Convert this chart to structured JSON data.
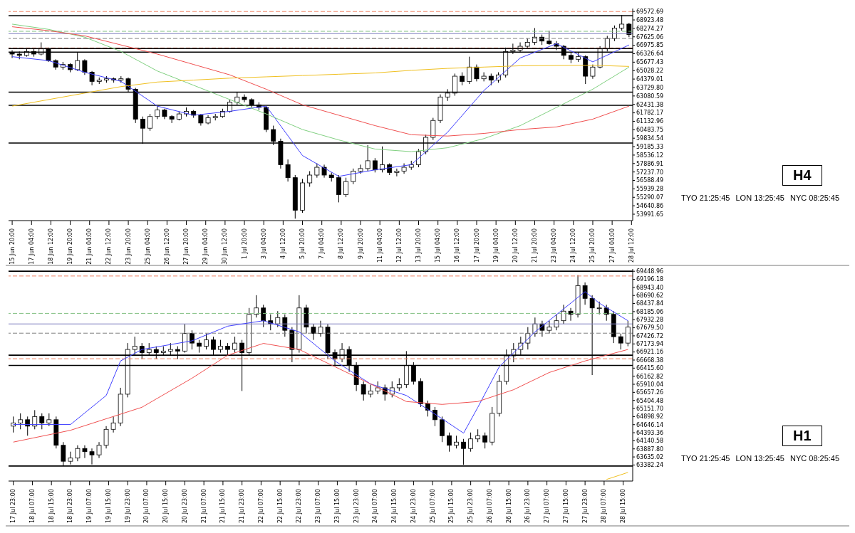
{
  "chart_data": [
    {
      "type": "candlestick",
      "color": "#000000",
      "x": [
        "--06-15T20:00",
        "--06-16T08:00",
        "--06-16T20:00",
        "--06-17T08:00",
        "--06-17T20:00",
        "--06-18T08:00",
        "--06-18T20:00",
        "--06-19T08:00",
        "--06-19T20:00",
        "--06-20T08:00",
        "--06-20T20:00",
        "--06-21T08:00",
        "--06-21T20:00",
        "--06-22T08:00",
        "--06-22T20:00",
        "--06-23T08:00",
        "--06-23T20:00",
        "--06-24T08:00",
        "--06-24T20:00",
        "--06-25T08:00",
        "--06-25T20:00",
        "--06-26T08:00",
        "--06-26T20:00",
        "--06-27T08:00",
        "--06-27T20:00",
        "--06-28T08:00",
        "--06-28T20:00",
        "--06-29T08:00",
        "--06-29T20:00",
        "--06-30T08:00",
        "--06-30T20:00",
        "--07-01T08:00",
        "--07-01T20:00",
        "--07-02T08:00",
        "--07-02T20:00",
        "--07-03T08:00",
        "--07-03T20:00",
        "--07-04T08:00",
        "--07-04T20:00",
        "--07-05T08:00",
        "--07-05T20:00",
        "--07-06T08:00",
        "--07-06T20:00",
        "--07-07T08:00",
        "--07-07T20:00",
        "--07-08T08:00",
        "--07-08T20:00",
        "--07-09T08:00",
        "--07-09T20:00",
        "--07-10T08:00",
        "--07-10T20:00",
        "--07-11T08:00",
        "--07-11T20:00",
        "--07-12T08:00",
        "--07-12T20:00",
        "--07-13T08:00",
        "--07-13T20:00",
        "--07-14T08:00",
        "--07-14T20:00",
        "--07-15T08:00",
        "--07-15T20:00",
        "--07-16T08:00",
        "--07-16T20:00",
        "--07-17T08:00",
        "--07-17T20:00",
        "--07-18T08:00",
        "--07-18T20:00",
        "--07-19T08:00",
        "--07-19T20:00",
        "--07-20T08:00",
        "--07-20T20:00",
        "--07-21T08:00",
        "--07-21T20:00",
        "--07-22T08:00",
        "--07-22T20:00",
        "--07-23T08:00",
        "--07-23T20:00",
        "--07-24T08:00",
        "--07-24T20:00",
        "--07-25T08:00",
        "--07-25T20:00",
        "--07-26T08:00",
        "--07-26T20:00",
        "--07-27T08:00",
        "--07-27T20:00",
        "--07-28T08:00"
      ],
      "ohlc": [
        [
          66400,
          66600,
          66000,
          66300
        ],
        [
          66300,
          66500,
          65900,
          66200
        ],
        [
          66200,
          66700,
          66100,
          66500
        ],
        [
          66500,
          66700,
          66100,
          66300
        ],
        [
          66300,
          67200,
          66200,
          66700
        ],
        [
          66700,
          66800,
          65700,
          65800
        ],
        [
          65800,
          65900,
          65100,
          65300
        ],
        [
          65300,
          65700,
          65100,
          65500
        ],
        [
          65500,
          65600,
          64900,
          65100
        ],
        [
          65100,
          66400,
          65000,
          65800
        ],
        [
          65800,
          65900,
          64700,
          64900
        ],
        [
          64900,
          65000,
          63900,
          64200
        ],
        [
          64200,
          64500,
          64000,
          64300
        ],
        [
          64300,
          64600,
          64100,
          64400
        ],
        [
          64400,
          64500,
          64100,
          64300
        ],
        [
          64300,
          64600,
          64100,
          64400
        ],
        [
          64400,
          64500,
          63400,
          63600
        ],
        [
          63600,
          63700,
          61000,
          61300
        ],
        [
          61300,
          61500,
          59400,
          60600
        ],
        [
          60600,
          61700,
          60400,
          61500
        ],
        [
          61500,
          62300,
          61300,
          62000
        ],
        [
          62000,
          62100,
          61300,
          61500
        ],
        [
          61500,
          61600,
          61000,
          61300
        ],
        [
          61300,
          61900,
          61200,
          61700
        ],
        [
          61700,
          62200,
          61500,
          61900
        ],
        [
          61900,
          62000,
          61400,
          61600
        ],
        [
          61600,
          61700,
          60800,
          61000
        ],
        [
          61000,
          61600,
          60900,
          61400
        ],
        [
          61400,
          61700,
          61200,
          61500
        ],
        [
          61500,
          62100,
          61400,
          61900
        ],
        [
          61900,
          62800,
          61800,
          62600
        ],
        [
          62600,
          63400,
          62400,
          63000
        ],
        [
          63000,
          63200,
          62600,
          62800
        ],
        [
          62800,
          62900,
          62200,
          62400
        ],
        [
          62400,
          62600,
          62000,
          62200
        ],
        [
          62200,
          62300,
          60300,
          60500
        ],
        [
          60500,
          60800,
          59300,
          59600
        ],
        [
          59600,
          59800,
          57500,
          57800
        ],
        [
          57800,
          58200,
          56500,
          56800
        ],
        [
          56800,
          57000,
          53650,
          54300
        ],
        [
          54300,
          56700,
          54100,
          56400
        ],
        [
          56400,
          57300,
          56100,
          57000
        ],
        [
          57000,
          57900,
          56800,
          57600
        ],
        [
          57600,
          57800,
          56800,
          57000
        ],
        [
          57000,
          57200,
          56500,
          56800
        ],
        [
          56800,
          57000,
          54900,
          55500
        ],
        [
          55500,
          56800,
          55300,
          56500
        ],
        [
          56500,
          57500,
          56300,
          57300
        ],
        [
          57300,
          57800,
          57100,
          57500
        ],
        [
          57500,
          59300,
          57300,
          58100
        ],
        [
          58100,
          58300,
          57200,
          57400
        ],
        [
          57400,
          59200,
          57200,
          57800
        ],
        [
          57800,
          57900,
          57000,
          57200
        ],
        [
          57200,
          57500,
          56900,
          57300
        ],
        [
          57300,
          57900,
          57100,
          57600
        ],
        [
          57600,
          58100,
          57400,
          57800
        ],
        [
          57800,
          59000,
          57600,
          58800
        ],
        [
          58800,
          60100,
          58600,
          59900
        ],
        [
          59900,
          61400,
          59700,
          61200
        ],
        [
          61200,
          63200,
          61000,
          63000
        ],
        [
          63000,
          63600,
          62700,
          63300
        ],
        [
          63300,
          64800,
          63100,
          64600
        ],
        [
          64600,
          64900,
          63900,
          64200
        ],
        [
          64200,
          66100,
          64000,
          65300
        ],
        [
          65300,
          65500,
          64200,
          64400
        ],
        [
          64400,
          64900,
          64200,
          64600
        ],
        [
          64600,
          64800,
          63900,
          64300
        ],
        [
          64300,
          64900,
          64100,
          64700
        ],
        [
          64700,
          66800,
          64500,
          66500
        ],
        [
          66500,
          67100,
          66300,
          66600
        ],
        [
          66600,
          67200,
          66400,
          66900
        ],
        [
          66900,
          67500,
          66700,
          67200
        ],
        [
          67200,
          68300,
          67000,
          67600
        ],
        [
          67600,
          67800,
          67000,
          67300
        ],
        [
          67300,
          68100,
          67000,
          67100
        ],
        [
          67100,
          67300,
          66600,
          66900
        ],
        [
          66900,
          67000,
          65900,
          66200
        ],
        [
          66200,
          66400,
          65600,
          65900
        ],
        [
          65900,
          66400,
          65700,
          66100
        ],
        [
          66100,
          66200,
          64000,
          64600
        ],
        [
          64600,
          65500,
          64400,
          65300
        ],
        [
          65300,
          66900,
          65200,
          66700
        ],
        [
          66700,
          67700,
          66500,
          67500
        ],
        [
          67500,
          68500,
          67300,
          68300
        ],
        [
          68300,
          69300,
          68100,
          68600
        ],
        [
          68600,
          68700,
          67600,
          67800
        ]
      ],
      "series": [
        {
          "type": "line",
          "color": "#4040ff",
          "x": [
            "--06-15T20:00",
            "--06-18T08:00",
            "--06-20T20:00",
            "--06-23T08:00",
            "--06-25T20:00",
            "--06-28T08:00",
            "--06-30T20:00",
            "--07-03T08:00",
            "--07-05T20:00",
            "--07-08T08:00",
            "--07-10T20:00",
            "--07-13T08:00",
            "--07-15T20:00",
            "--07-18T08:00",
            "--07-20T20:00",
            "--07-23T08:00",
            "--07-25T20:00",
            "--07-28T08:00"
          ],
          "values": [
            66100,
            65800,
            64900,
            64200,
            62300,
            61600,
            61900,
            62300,
            58500,
            56900,
            57400,
            57800,
            60300,
            63500,
            66000,
            67100,
            65700,
            67000
          ]
        },
        {
          "type": "line",
          "color": "#80d080",
          "x": [
            "--06-15T20:00",
            "--06-18T08:00",
            "--06-20T20:00",
            "--06-23T08:00",
            "--06-25T20:00",
            "--06-28T08:00",
            "--06-30T20:00",
            "--07-03T08:00",
            "--07-05T20:00",
            "--07-08T08:00",
            "--07-10T20:00",
            "--07-13T08:00",
            "--07-15T20:00",
            "--07-18T08:00",
            "--07-20T20:00",
            "--07-23T08:00",
            "--07-25T20:00",
            "--07-28T08:00"
          ],
          "values": [
            68600,
            68200,
            67600,
            66500,
            65000,
            63900,
            62800,
            61700,
            60500,
            59700,
            59000,
            58800,
            59100,
            59800,
            60800,
            62200,
            63600,
            65300
          ]
        },
        {
          "type": "line",
          "color": "#f05050",
          "x": [
            "--06-15T20:00",
            "--06-18T08:00",
            "--06-20T20:00",
            "--06-23T08:00",
            "--06-25T20:00",
            "--06-28T08:00",
            "--06-30T20:00",
            "--07-03T08:00",
            "--07-05T20:00",
            "--07-08T08:00",
            "--07-10T20:00",
            "--07-13T08:00",
            "--07-15T20:00",
            "--07-18T08:00",
            "--07-20T20:00",
            "--07-23T08:00",
            "--07-25T20:00",
            "--07-28T08:00"
          ],
          "values": [
            68400,
            68100,
            67700,
            67000,
            66300,
            65500,
            64700,
            63600,
            62400,
            61600,
            60800,
            60100,
            60000,
            60200,
            60500,
            60700,
            61300,
            62300
          ]
        },
        {
          "type": "line",
          "color": "#f0c020",
          "x": [
            "--06-15T20:00",
            "--06-18T08:00",
            "--06-20T20:00",
            "--06-23T08:00",
            "--06-25T20:00",
            "--06-28T08:00",
            "--06-30T20:00",
            "--07-03T08:00",
            "--07-05T20:00",
            "--07-08T08:00",
            "--07-10T20:00",
            "--07-13T08:00",
            "--07-15T20:00",
            "--07-18T08:00",
            "--07-20T20:00",
            "--07-23T08:00",
            "--07-25T20:00",
            "--07-28T08:00"
          ],
          "values": [
            62300,
            62800,
            63300,
            63800,
            64150,
            64300,
            64450,
            64550,
            64650,
            64750,
            64850,
            65050,
            65200,
            65300,
            65400,
            65420,
            65440,
            65350
          ]
        }
      ],
      "xlim": [
        "--06-15T14:00",
        "--07-28T14:00"
      ],
      "xticks": [
        {
          "value": "--06-15T20:00",
          "label": "15 Jun 20:00"
        },
        {
          "value": "--06-17T04:00",
          "label": "17 Jun 04:00"
        },
        {
          "value": "--06-18T12:00",
          "label": "18 Jun 12:00"
        },
        {
          "value": "--06-19T20:00",
          "label": "19 Jun 20:00"
        },
        {
          "value": "--06-21T04:00",
          "label": "21 Jun 04:00"
        },
        {
          "value": "--06-22T12:00",
          "label": "22 Jun 12:00"
        },
        {
          "value": "--06-23T20:00",
          "label": "23 Jun 20:00"
        },
        {
          "value": "--06-25T04:00",
          "label": "25 Jun 04:00"
        },
        {
          "value": "--06-26T12:00",
          "label": "26 Jun 12:00"
        },
        {
          "value": "--06-27T20:00",
          "label": "27 Jun 20:00"
        },
        {
          "value": "--06-29T04:00",
          "label": "29 Jun 04:00"
        },
        {
          "value": "--06-30T12:00",
          "label": "30 Jun 12:00"
        },
        {
          "value": "--07-01T20:00",
          "label": "1 Jul 20:00"
        },
        {
          "value": "--07-03T04:00",
          "label": "3 Jul 04:00"
        },
        {
          "value": "--07-04T12:00",
          "label": "4 Jul 12:00"
        },
        {
          "value": "--07-05T20:00",
          "label": "5 Jul 20:00"
        },
        {
          "value": "--07-07T04:00",
          "label": "7 Jul 04:00"
        },
        {
          "value": "--07-08T12:00",
          "label": "8 Jul 12:00"
        },
        {
          "value": "--07-09T20:00",
          "label": "9 Jul 20:00"
        },
        {
          "value": "--07-11T04:00",
          "label": "11 Jul 04:00"
        },
        {
          "value": "--07-12T12:00",
          "label": "12 Jul 12:00"
        },
        {
          "value": "--07-13T20:00",
          "label": "13 Jul 20:00"
        },
        {
          "value": "--07-15T04:00",
          "label": "15 Jul 04:00"
        },
        {
          "value": "--07-16T12:00",
          "label": "16 Jul 12:00"
        },
        {
          "value": "--07-17T20:00",
          "label": "17 Jul 20:00"
        },
        {
          "value": "--07-19T04:00",
          "label": "19 Jul 04:00"
        },
        {
          "value": "--07-20T12:00",
          "label": "20 Jul 12:00"
        },
        {
          "value": "--07-21T20:00",
          "label": "21 Jul 20:00"
        },
        {
          "value": "--07-23T04:00",
          "label": "23 Jul 04:00"
        },
        {
          "value": "--07-24T12:00",
          "label": "24 Jul 12:00"
        },
        {
          "value": "--07-25T20:00",
          "label": "25 Jul 20:00"
        },
        {
          "value": "--07-27T04:00",
          "label": "27 Jul 04:00"
        },
        {
          "value": "--07-28T12:00",
          "label": "28 Jul 12:00"
        }
      ],
      "ylim": [
        53500,
        69800
      ],
      "yticks": [
        53991.65,
        54640.86,
        55290.07,
        55939.28,
        56588.49,
        {
          "value": 57237.7,
          "label": "57237.70"
        },
        57886.91,
        58536.12,
        59185.33,
        59834.54,
        60483.75,
        61132.96,
        61782.17,
        62431.38,
        63080.59,
        {
          "value": 63729.8,
          "label": "63729.80"
        },
        64379.01,
        65028.22,
        65677.43,
        66326.64,
        66975.85,
        67625.06,
        68274.27,
        68923.48,
        69572.69
      ],
      "ref_lines": [
        {
          "axis": "y",
          "value": 69570,
          "color": "#f08060",
          "line_style": "dashed"
        },
        {
          "axis": "y",
          "value": 69250,
          "color": "#000000",
          "line_style": "solid"
        },
        {
          "axis": "y",
          "value": 68050,
          "color": "#80c080",
          "line_style": "dashed"
        },
        {
          "axis": "y",
          "value": 67870,
          "color": "#8080c0",
          "line_style": "solid"
        },
        {
          "axis": "y",
          "value": 67500,
          "color": "#808080",
          "line_style": "dashed"
        },
        {
          "axis": "y",
          "value": 66770,
          "color": "#f08060",
          "line_style": "dashed"
        },
        {
          "axis": "y",
          "value": 66720,
          "color": "#000000",
          "line_style": "solid"
        },
        {
          "axis": "y",
          "value": 66450,
          "color": "#000000",
          "line_style": "solid"
        },
        {
          "axis": "y",
          "value": 63370,
          "color": "#000000",
          "line_style": "solid"
        },
        {
          "axis": "y",
          "value": 62360,
          "color": "#000000",
          "line_style": "solid"
        },
        {
          "axis": "y",
          "value": 59460,
          "color": "#000000",
          "line_style": "solid"
        }
      ],
      "annotations": [
        "H4",
        "TYO 21:25:45",
        "LON 13:25:45",
        "NYC 08:25:45"
      ]
    },
    {
      "type": "candlestick",
      "color": "#000000",
      "x": [
        "--07-17T23:00",
        "--07-18T02:00",
        "--07-18T05:00",
        "--07-18T08:00",
        "--07-18T11:00",
        "--07-18T14:00",
        "--07-18T17:00",
        "--07-18T20:00",
        "--07-18T23:00",
        "--07-19T02:00",
        "--07-19T05:00",
        "--07-19T08:00",
        "--07-19T11:00",
        "--07-19T14:00",
        "--07-19T17:00",
        "--07-19T20:00",
        "--07-19T23:00",
        "--07-20T02:00",
        "--07-20T05:00",
        "--07-20T08:00",
        "--07-20T11:00",
        "--07-20T14:00",
        "--07-20T17:00",
        "--07-20T20:00",
        "--07-20T23:00",
        "--07-21T02:00",
        "--07-21T05:00",
        "--07-21T08:00",
        "--07-21T11:00",
        "--07-21T14:00",
        "--07-21T17:00",
        "--07-21T20:00",
        "--07-21T23:00",
        "--07-22T02:00",
        "--07-22T05:00",
        "--07-22T08:00",
        "--07-22T11:00",
        "--07-22T14:00",
        "--07-22T17:00",
        "--07-22T20:00",
        "--07-22T23:00",
        "--07-23T02:00",
        "--07-23T05:00",
        "--07-23T08:00",
        "--07-23T11:00",
        "--07-23T14:00",
        "--07-23T17:00",
        "--07-23T20:00",
        "--07-23T23:00",
        "--07-24T02:00",
        "--07-24T05:00",
        "--07-24T08:00",
        "--07-24T11:00",
        "--07-24T14:00",
        "--07-24T17:00",
        "--07-24T20:00",
        "--07-24T23:00",
        "--07-25T02:00",
        "--07-25T05:00",
        "--07-25T08:00",
        "--07-25T11:00",
        "--07-25T14:00",
        "--07-25T17:00",
        "--07-25T20:00",
        "--07-25T23:00",
        "--07-26T02:00",
        "--07-26T05:00",
        "--07-26T08:00",
        "--07-26T11:00",
        "--07-26T14:00",
        "--07-26T17:00",
        "--07-26T20:00",
        "--07-26T23:00",
        "--07-27T02:00",
        "--07-27T05:00",
        "--07-27T08:00",
        "--07-27T11:00",
        "--07-27T14:00",
        "--07-27T17:00",
        "--07-27T20:00",
        "--07-27T23:00",
        "--07-28T02:00",
        "--07-28T05:00",
        "--07-28T08:00",
        "--07-28T11:00",
        "--07-28T14:00",
        "--07-28T17:00"
      ],
      "ohlc": [
        [
          64600,
          64900,
          64400,
          64700
        ],
        [
          64700,
          65000,
          64500,
          64800
        ],
        [
          64800,
          64900,
          64300,
          64600
        ],
        [
          64600,
          65100,
          64500,
          64900
        ],
        [
          64900,
          65000,
          64500,
          64700
        ],
        [
          64700,
          65000,
          64600,
          64800
        ],
        [
          64800,
          64900,
          63900,
          64000
        ],
        [
          64000,
          64100,
          63350,
          63500
        ],
        [
          63500,
          63800,
          63400,
          63600
        ],
        [
          63600,
          64000,
          63500,
          63900
        ],
        [
          63900,
          64000,
          63600,
          63800
        ],
        [
          63800,
          63900,
          63400,
          63700
        ],
        [
          63700,
          64100,
          63600,
          64000
        ],
        [
          64000,
          64600,
          63900,
          64500
        ],
        [
          64500,
          64900,
          64400,
          64700
        ],
        [
          64700,
          65800,
          64600,
          65600
        ],
        [
          65600,
          67200,
          65500,
          67000
        ],
        [
          67000,
          67400,
          66800,
          67100
        ],
        [
          67100,
          67200,
          66700,
          66900
        ],
        [
          66900,
          67200,
          66800,
          67000
        ],
        [
          67000,
          67100,
          66700,
          66900
        ],
        [
          66900,
          67100,
          66800,
          66950
        ],
        [
          66950,
          67200,
          66800,
          67000
        ],
        [
          67000,
          67100,
          66700,
          66950
        ],
        [
          66950,
          67800,
          66900,
          67500
        ],
        [
          67500,
          67600,
          67000,
          67200
        ],
        [
          67200,
          67300,
          66900,
          67100
        ],
        [
          67100,
          67500,
          67000,
          67300
        ],
        [
          67300,
          67400,
          66800,
          67000
        ],
        [
          67000,
          67300,
          66900,
          67100
        ],
        [
          67100,
          67200,
          66800,
          67000
        ],
        [
          67000,
          67400,
          66900,
          67200
        ],
        [
          67200,
          67300,
          65700,
          66900
        ],
        [
          66900,
          68300,
          66800,
          68100
        ],
        [
          68100,
          68700,
          68000,
          68300
        ],
        [
          68300,
          68400,
          67700,
          67900
        ],
        [
          67900,
          68100,
          67600,
          67800
        ],
        [
          67800,
          68200,
          67700,
          68000
        ],
        [
          68000,
          68100,
          67400,
          67600
        ],
        [
          67600,
          67700,
          66600,
          67000
        ],
        [
          67000,
          68700,
          66900,
          68300
        ],
        [
          68300,
          68400,
          67500,
          67700
        ],
        [
          67700,
          67800,
          67300,
          67500
        ],
        [
          67500,
          67900,
          67400,
          67700
        ],
        [
          67700,
          67800,
          66700,
          66900
        ],
        [
          66900,
          67000,
          66500,
          66700
        ],
        [
          66700,
          67200,
          66600,
          67000
        ],
        [
          67000,
          67100,
          66300,
          66500
        ],
        [
          66500,
          66600,
          65700,
          65900
        ],
        [
          65900,
          66000,
          65400,
          65600
        ],
        [
          65600,
          65900,
          65500,
          65700
        ],
        [
          65700,
          66000,
          65600,
          65800
        ],
        [
          65800,
          65900,
          65400,
          65600
        ],
        [
          65600,
          66000,
          65500,
          65800
        ],
        [
          65800,
          66100,
          65700,
          65900
        ],
        [
          65900,
          66950,
          65800,
          66500
        ],
        [
          66500,
          66600,
          65900,
          66000
        ],
        [
          66000,
          66100,
          65200,
          65300
        ],
        [
          65300,
          65400,
          64900,
          65100
        ],
        [
          65100,
          65200,
          64600,
          64800
        ],
        [
          64800,
          64900,
          64100,
          64300
        ],
        [
          64300,
          64400,
          63800,
          64000
        ],
        [
          64000,
          64300,
          63900,
          64100
        ],
        [
          64100,
          64200,
          63390,
          63900
        ],
        [
          63900,
          64400,
          63800,
          64200
        ],
        [
          64200,
          64500,
          64100,
          64300
        ],
        [
          64300,
          64400,
          63900,
          64100
        ],
        [
          64100,
          65200,
          64000,
          65000
        ],
        [
          65000,
          66200,
          64900,
          66000
        ],
        [
          66000,
          67000,
          65900,
          66800
        ],
        [
          66800,
          67200,
          66600,
          67000
        ],
        [
          67000,
          67400,
          66800,
          67200
        ],
        [
          67200,
          67700,
          67000,
          67500
        ],
        [
          67500,
          68000,
          67400,
          67800
        ],
        [
          67800,
          67900,
          67400,
          67600
        ],
        [
          67600,
          67900,
          67500,
          67700
        ],
        [
          67700,
          68100,
          67600,
          67900
        ],
        [
          67900,
          68400,
          67800,
          68200
        ],
        [
          68200,
          68300,
          67900,
          68100
        ],
        [
          68100,
          69330,
          68000,
          69000
        ],
        [
          69000,
          69100,
          68400,
          68600
        ],
        [
          68600,
          68700,
          66200,
          68300
        ],
        [
          68300,
          68500,
          68100,
          68300
        ],
        [
          68300,
          68400,
          67900,
          68100
        ],
        [
          68100,
          68200,
          67200,
          67400
        ],
        [
          67400,
          67500,
          67000,
          67200
        ],
        [
          67200,
          67900,
          67100,
          67700
        ]
      ],
      "series": [
        {
          "type": "line",
          "color": "#4040ff",
          "x": [
            "--07-17T23:00",
            "--07-18T23:00",
            "--07-19T14:00",
            "--07-19T20:00",
            "--07-20T05:00",
            "--07-21T02:00",
            "--07-21T17:00",
            "--07-22T08:00",
            "--07-22T23:00",
            "--07-23T14:00",
            "--07-24T05:00",
            "--07-24T20:00",
            "--07-25T11:00",
            "--07-25T20:00",
            "--07-26T02:00",
            "--07-26T11:00",
            "--07-27T02:00",
            "--07-27T14:00",
            "--07-27T23:00",
            "--07-28T05:00",
            "--07-28T17:00"
          ],
          "values": [
            64650,
            64650,
            65560,
            66640,
            67000,
            67270,
            67730,
            67900,
            67550,
            66640,
            65920,
            65560,
            64830,
            64380,
            65190,
            66460,
            67550,
            68270,
            68810,
            68450,
            67900
          ]
        },
        {
          "type": "line",
          "color": "#f05050",
          "x": [
            "--07-17T23:00",
            "--07-18T23:00",
            "--07-20T05:00",
            "--07-21T02:00",
            "--07-21T17:00",
            "--07-22T08:00",
            "--07-22T23:00",
            "--07-23T14:00",
            "--07-24T05:00",
            "--07-24T20:00",
            "--07-25T11:00",
            "--07-26T02:00",
            "--07-26T17:00",
            "--07-27T08:00",
            "--07-27T23:00",
            "--07-28T17:00"
          ],
          "values": [
            64100,
            64470,
            65190,
            66100,
            66820,
            67190,
            67000,
            66460,
            65920,
            65370,
            65280,
            65370,
            65740,
            66280,
            66640,
            67000
          ]
        },
        {
          "type": "line",
          "color": "#f0c020",
          "x": [
            "--07-28T08:00",
            "--07-28T17:00"
          ],
          "values": [
            62930,
            63150
          ]
        }
      ],
      "xlim": [
        "--07-17T21:00",
        "--07-28T19:00"
      ],
      "xticks": [
        {
          "value": "--07-17T23:00",
          "label": "17 Jul 23:00"
        },
        {
          "value": "--07-18T07:00",
          "label": "18 Jul 07:00"
        },
        {
          "value": "--07-18T15:00",
          "label": "18 Jul 15:00"
        },
        {
          "value": "--07-18T23:00",
          "label": "18 Jul 23:00"
        },
        {
          "value": "--07-19T07:00",
          "label": "19 Jul 07:00"
        },
        {
          "value": "--07-19T15:00",
          "label": "19 Jul 15:00"
        },
        {
          "value": "--07-19T23:00",
          "label": "19 Jul 23:00"
        },
        {
          "value": "--07-20T07:00",
          "label": "20 Jul 07:00"
        },
        {
          "value": "--07-20T15:00",
          "label": "20 Jul 15:00"
        },
        {
          "value": "--07-20T23:00",
          "label": "20 Jul 23:00"
        },
        {
          "value": "--07-21T07:00",
          "label": "21 Jul 07:00"
        },
        {
          "value": "--07-21T15:00",
          "label": "21 Jul 15:00"
        },
        {
          "value": "--07-21T23:00",
          "label": "21 Jul 23:00"
        },
        {
          "value": "--07-22T07:00",
          "label": "22 Jul 07:00"
        },
        {
          "value": "--07-22T15:00",
          "label": "22 Jul 15:00"
        },
        {
          "value": "--07-22T23:00",
          "label": "22 Jul 23:00"
        },
        {
          "value": "--07-23T07:00",
          "label": "23 Jul 07:00"
        },
        {
          "value": "--07-23T15:00",
          "label": "23 Jul 15:00"
        },
        {
          "value": "--07-23T23:00",
          "label": "23 Jul 23:00"
        },
        {
          "value": "--07-24T07:00",
          "label": "24 Jul 07:00"
        },
        {
          "value": "--07-24T15:00",
          "label": "24 Jul 15:00"
        },
        {
          "value": "--07-24T23:00",
          "label": "24 Jul 23:00"
        },
        {
          "value": "--07-25T07:00",
          "label": "25 Jul 07:00"
        },
        {
          "value": "--07-25T15:00",
          "label": "25 Jul 15:00"
        },
        {
          "value": "--07-25T23:00",
          "label": "25 Jul 23:00"
        },
        {
          "value": "--07-26T07:00",
          "label": "26 Jul 07:00"
        },
        {
          "value": "--07-26T15:00",
          "label": "26 Jul 15:00"
        },
        {
          "value": "--07-26T23:00",
          "label": "26 Jul 23:00"
        },
        {
          "value": "--07-27T07:00",
          "label": "27 Jul 07:00"
        },
        {
          "value": "--07-27T15:00",
          "label": "27 Jul 15:00"
        },
        {
          "value": "--07-27T23:00",
          "label": "27 Jul 23:00"
        },
        {
          "value": "--07-28T07:00",
          "label": "28 Jul 07:00"
        },
        {
          "value": "--07-28T15:00",
          "label": "28 Jul 15:00"
        }
      ],
      "ylim": [
        62880,
        69520
      ],
      "yticks": [
        63382.24,
        63635.02,
        {
          "value": 63887.8,
          "label": "63887.80"
        },
        64140.58,
        64393.36,
        64646.14,
        64898.92,
        {
          "value": 65151.7,
          "label": "65151.70"
        },
        65404.48,
        65657.26,
        65910.04,
        66162.82,
        {
          "value": 66415.6,
          "label": "66415.60"
        },
        66668.38,
        66921.16,
        67173.94,
        67426.72,
        {
          "value": 67679.5,
          "label": "67679.50"
        },
        67932.28,
        68185.06,
        68437.84,
        68690.62,
        {
          "value": 68943.4,
          "label": "68943.40"
        },
        69196.18,
        69448.96
      ],
      "ref_lines": [
        {
          "axis": "y",
          "value": 69450,
          "color": "#000000",
          "line_style": "solid"
        },
        {
          "axis": "y",
          "value": 69300,
          "color": "#f08060",
          "line_style": "dashed"
        },
        {
          "axis": "y",
          "value": 68130,
          "color": "#80c080",
          "line_style": "dashed"
        },
        {
          "axis": "y",
          "value": 67800,
          "color": "#8080c0",
          "line_style": "solid"
        },
        {
          "axis": "y",
          "value": 67510,
          "color": "#808080",
          "line_style": "dashed"
        },
        {
          "axis": "y",
          "value": 66820,
          "color": "#000000",
          "line_style": "solid"
        },
        {
          "axis": "y",
          "value": 66710,
          "color": "#f08060",
          "line_style": "dashed"
        },
        {
          "axis": "y",
          "value": 66500,
          "color": "#000000",
          "line_style": "solid"
        },
        {
          "axis": "y",
          "value": 63350,
          "color": "#000000",
          "line_style": "solid"
        }
      ],
      "annotations": [
        "H1",
        "TYO 21:25:45",
        "LON 13:25:45",
        "NYC 08:25:45"
      ]
    }
  ]
}
